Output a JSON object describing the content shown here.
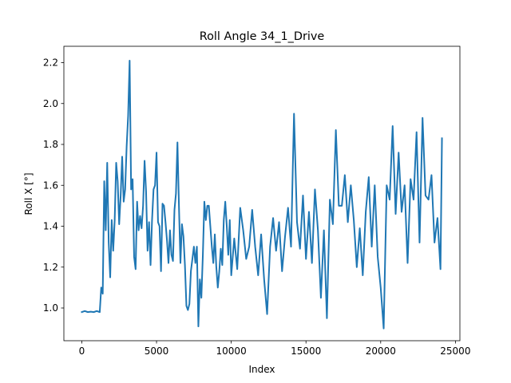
{
  "chart_data": {
    "type": "line",
    "title": "Roll Angle  34_1_Drive",
    "xlabel": "Index",
    "ylabel": "Roll X [°]",
    "xlim": [
      -1200,
      25300
    ],
    "ylim": [
      0.84,
      2.28
    ],
    "xticks": [
      0,
      5000,
      10000,
      15000,
      20000,
      25000
    ],
    "xtick_labels": [
      "0",
      "5000",
      "10000",
      "15000",
      "20000",
      "25000"
    ],
    "yticks": [
      1.0,
      1.2,
      1.4,
      1.6,
      1.8,
      2.0,
      2.2
    ],
    "ytick_labels": [
      "1.0",
      "1.2",
      "1.4",
      "1.6",
      "1.8",
      "2.0",
      "2.2"
    ],
    "grid": false,
    "legend": "none",
    "series": [
      {
        "color": "#1f77b4",
        "x": [
          0,
          200,
          400,
          600,
          800,
          1000,
          1200,
          1300,
          1400,
          1500,
          1600,
          1700,
          1800,
          1900,
          2000,
          2100,
          2200,
          2300,
          2400,
          2500,
          2600,
          2700,
          2800,
          2900,
          3000,
          3100,
          3200,
          3300,
          3400,
          3500,
          3600,
          3700,
          3800,
          3900,
          4000,
          4100,
          4200,
          4300,
          4400,
          4500,
          4600,
          4700,
          4800,
          4900,
          5000,
          5100,
          5200,
          5300,
          5400,
          5500,
          5600,
          5700,
          5800,
          5900,
          6000,
          6100,
          6200,
          6300,
          6400,
          6500,
          6600,
          6700,
          6800,
          6900,
          7000,
          7100,
          7200,
          7300,
          7400,
          7500,
          7600,
          7700,
          7800,
          7900,
          8000,
          8100,
          8200,
          8300,
          8400,
          8500,
          8600,
          8700,
          8800,
          8900,
          9000,
          9100,
          9200,
          9300,
          9400,
          9500,
          9600,
          9700,
          9800,
          9900,
          10000,
          10200,
          10400,
          10600,
          10800,
          11000,
          11200,
          11400,
          11600,
          11800,
          12000,
          12200,
          12400,
          12600,
          12800,
          13000,
          13200,
          13400,
          13600,
          13800,
          14000,
          14200,
          14400,
          14600,
          14800,
          15000,
          15200,
          15400,
          15600,
          15800,
          16000,
          16200,
          16400,
          16600,
          16800,
          17000,
          17200,
          17400,
          17600,
          17800,
          18000,
          18200,
          18400,
          18600,
          18800,
          19000,
          19200,
          19400,
          19600,
          19800,
          20000,
          20200,
          20400,
          20600,
          20800,
          21000,
          21200,
          21400,
          21600,
          21800,
          22000,
          22200,
          22400,
          22600,
          22800,
          23000,
          23200,
          23400,
          23600,
          23800,
          24000,
          24100
        ],
        "y": [
          0.98,
          0.985,
          0.98,
          0.982,
          0.98,
          0.985,
          0.98,
          1.1,
          1.07,
          1.62,
          1.38,
          1.71,
          1.32,
          1.15,
          1.43,
          1.28,
          1.43,
          1.71,
          1.62,
          1.41,
          1.55,
          1.74,
          1.52,
          1.58,
          1.79,
          1.94,
          2.21,
          1.58,
          1.63,
          1.25,
          1.19,
          1.52,
          1.38,
          1.45,
          1.39,
          1.5,
          1.72,
          1.57,
          1.28,
          1.42,
          1.21,
          1.43,
          1.58,
          1.6,
          1.76,
          1.42,
          1.4,
          1.18,
          1.51,
          1.5,
          1.42,
          1.33,
          1.22,
          1.38,
          1.26,
          1.23,
          1.48,
          1.56,
          1.81,
          1.5,
          1.22,
          1.41,
          1.35,
          1.21,
          1.01,
          0.99,
          1.02,
          1.18,
          1.24,
          1.3,
          1.22,
          1.3,
          0.91,
          1.14,
          1.05,
          1.26,
          1.52,
          1.43,
          1.5,
          1.5,
          1.4,
          1.3,
          1.22,
          1.36,
          1.2,
          1.1,
          1.18,
          1.29,
          1.21,
          1.43,
          1.52,
          1.4,
          1.26,
          1.43,
          1.16,
          1.34,
          1.19,
          1.49,
          1.38,
          1.24,
          1.3,
          1.48,
          1.3,
          1.16,
          1.36,
          1.14,
          0.97,
          1.3,
          1.44,
          1.28,
          1.42,
          1.18,
          1.35,
          1.49,
          1.3,
          1.95,
          1.42,
          1.29,
          1.55,
          1.24,
          1.47,
          1.22,
          1.58,
          1.38,
          1.05,
          1.38,
          0.95,
          1.53,
          1.41,
          1.87,
          1.5,
          1.5,
          1.65,
          1.42,
          1.6,
          1.43,
          1.2,
          1.39,
          1.16,
          1.47,
          1.64,
          1.3,
          1.6,
          1.25,
          1.1,
          0.9,
          1.6,
          1.53,
          1.89,
          1.46,
          1.76,
          1.47,
          1.6,
          1.22,
          1.63,
          1.53,
          1.86,
          1.32,
          1.93,
          1.55,
          1.53,
          1.65,
          1.32,
          1.44,
          1.19,
          1.83
        ]
      }
    ]
  }
}
